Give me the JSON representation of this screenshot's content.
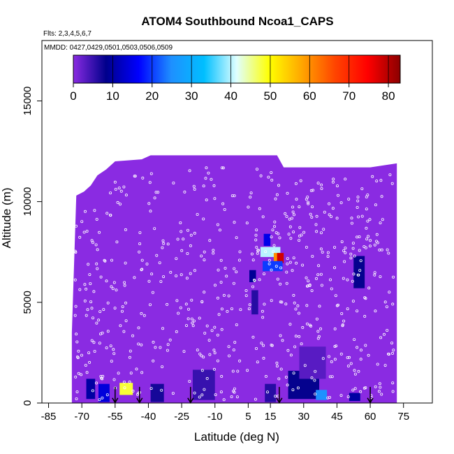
{
  "chart_data": {
    "type": "heatmap",
    "title": "ATOM4 Southbound Ncoa1_CAPS",
    "flights_note": "Flts: 2,3,4,5,6,7",
    "dates_note": "MMDD: 0427,0429,0501,0503,0506,0509",
    "xlabel": "Latitude (deg N)",
    "ylabel": "Altitude (m)",
    "xlim": [
      -88,
      88
    ],
    "ylim": [
      0,
      18000
    ],
    "x_ticks": [
      -85,
      -70,
      -55,
      -40,
      -25,
      -10,
      5,
      15,
      30,
      45,
      60,
      75
    ],
    "x_tick_labels": [
      "-85",
      "-70",
      "-55",
      "-40",
      "-25",
      "-10",
      "5",
      "15",
      "30",
      "45",
      "60",
      "75"
    ],
    "y_ticks": [
      0,
      5000,
      10000,
      15000
    ],
    "y_tick_labels": [
      "0",
      "5000",
      "10000",
      "15000"
    ],
    "colorbar": {
      "min": 0,
      "max": 83,
      "ticks": [
        0,
        10,
        20,
        30,
        40,
        50,
        60,
        70,
        80
      ],
      "tick_labels": [
        "0",
        "10",
        "20",
        "30",
        "40",
        "50",
        "60",
        "70",
        "80"
      ],
      "colors": [
        "#8a2be2",
        "#00008b",
        "#0000ff",
        "#1e90ff",
        "#00bfff",
        "#e0ffff",
        "#ffff00",
        "#ffa500",
        "#ff4500",
        "#ff0000",
        "#8b0000"
      ]
    },
    "coverage": {
      "lat_range": [
        -74.5,
        72
      ],
      "ceiling_profile": [
        {
          "lat": -74.5,
          "alt": 3500
        },
        {
          "lat": -72.5,
          "alt": 10300
        },
        {
          "lat": -69,
          "alt": 10500
        },
        {
          "lat": -66,
          "alt": 10800
        },
        {
          "lat": -63,
          "alt": 11300
        },
        {
          "lat": -59,
          "alt": 11600
        },
        {
          "lat": -55,
          "alt": 12000
        },
        {
          "lat": -43,
          "alt": 12100
        },
        {
          "lat": -39,
          "alt": 12300
        },
        {
          "lat": 18,
          "alt": 12300
        },
        {
          "lat": 21,
          "alt": 11700
        },
        {
          "lat": 60,
          "alt": 11700
        },
        {
          "lat": 66,
          "alt": 11800
        },
        {
          "lat": 72,
          "alt": 11900
        }
      ]
    },
    "hotspots": [
      {
        "lat": 13.5,
        "alt": 8100,
        "w": 3,
        "h": 600,
        "value": 15
      },
      {
        "lat": 15,
        "alt": 7500,
        "w": 9,
        "h": 500,
        "value": 40
      },
      {
        "lat": 18,
        "alt": 7200,
        "w": 3,
        "h": 500,
        "value": 60
      },
      {
        "lat": 19.5,
        "alt": 7200,
        "w": 3,
        "h": 500,
        "value": 78
      },
      {
        "lat": 16,
        "alt": 6800,
        "w": 9,
        "h": 500,
        "value": 20
      },
      {
        "lat": 7,
        "alt": 6300,
        "w": 3,
        "h": 600,
        "value": 9
      },
      {
        "lat": 55,
        "alt": 6500,
        "w": 5,
        "h": 1600,
        "value": 8
      },
      {
        "lat": 8,
        "alt": 5000,
        "w": 3,
        "h": 1200,
        "value": 6
      },
      {
        "lat": -50,
        "alt": 700,
        "w": 6,
        "h": 600,
        "value": 48
      },
      {
        "lat": -66,
        "alt": 700,
        "w": 4,
        "h": 1000,
        "value": 10
      },
      {
        "lat": -60,
        "alt": 500,
        "w": 5,
        "h": 900,
        "value": 14
      },
      {
        "lat": -36,
        "alt": 500,
        "w": 6,
        "h": 900,
        "value": 7
      },
      {
        "lat": -15,
        "alt": 900,
        "w": 10,
        "h": 1500,
        "value": 5
      },
      {
        "lat": 15,
        "alt": 500,
        "w": 5,
        "h": 900,
        "value": 6
      },
      {
        "lat": 30,
        "alt": 900,
        "w": 14,
        "h": 1400,
        "value": 8
      },
      {
        "lat": 38,
        "alt": 400,
        "w": 5,
        "h": 500,
        "value": 25
      },
      {
        "lat": 53,
        "alt": 300,
        "w": 5,
        "h": 400,
        "value": 10
      },
      {
        "lat": 34,
        "alt": 2000,
        "w": 12,
        "h": 1600,
        "value": 3
      }
    ],
    "profile_markers_lat": [
      -55,
      -44,
      -21,
      19,
      60
    ]
  }
}
